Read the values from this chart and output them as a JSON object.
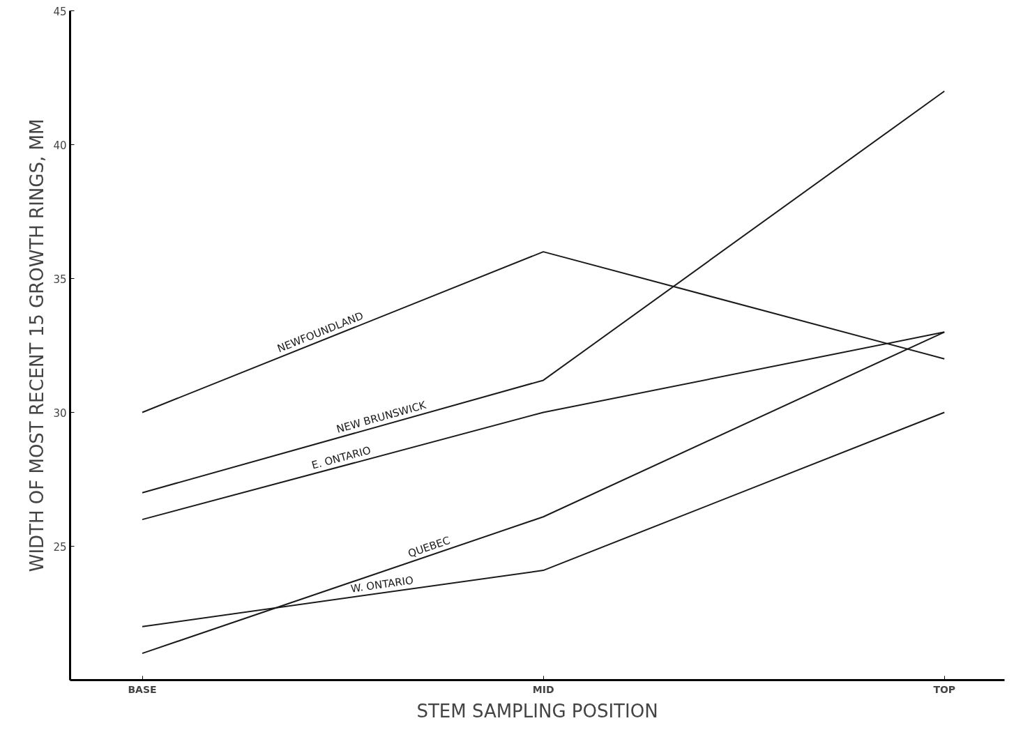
{
  "chart_data": {
    "type": "line",
    "xlabel": "STEM SAMPLING POSITION",
    "ylabel": "WIDTH OF MOST RECENT 15 GROWTH RINGS, MM",
    "categories": [
      "BASE",
      "MID",
      "TOP"
    ],
    "series": [
      {
        "name": "NEWFOUNDLAND",
        "color": "#1a1a1a",
        "values": [
          30.0,
          36.0,
          32.0
        ]
      },
      {
        "name": "NEW BRUNSWICK",
        "color": "#1a1a1a",
        "values": [
          27.0,
          31.2,
          42.0
        ]
      },
      {
        "name": "E. ONTARIO",
        "color": "#1a1a1a",
        "values": [
          26.0,
          30.0,
          33.0
        ]
      },
      {
        "name": "QUEBEC",
        "color": "#1a1a1a",
        "values": [
          21.0,
          26.1,
          33.0
        ]
      },
      {
        "name": "W. ONTARIO",
        "color": "#1a1a1a",
        "values": [
          22.0,
          24.1,
          30.0
        ]
      }
    ],
    "ylim": [
      20,
      45
    ],
    "yticks": [
      25,
      30,
      35,
      40,
      45
    ],
    "grid": false,
    "legend": false,
    "marker": "none",
    "line_style": "solid"
  }
}
